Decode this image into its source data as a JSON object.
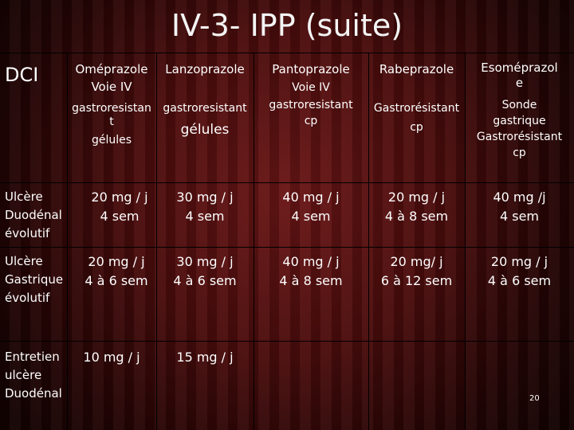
{
  "title": "IV-3- IPP (suite)",
  "dci_label": "DCI",
  "columns": [
    {
      "name": "Oméprazole",
      "line2": "Voie IV",
      "sub": [
        "gastroresistan",
        "t",
        "gélules"
      ]
    },
    {
      "name": "Lanzoprazole",
      "line2": "",
      "sub": [
        "gastroresistant",
        "gélules"
      ]
    },
    {
      "name": "Pantoprazole",
      "line2": "Voie IV",
      "sub": [
        "gastroresistant",
        "cp"
      ]
    },
    {
      "name": "Rabeprazole",
      "line2": "",
      "sub": [
        "Gastrorésistant",
        "cp"
      ]
    },
    {
      "name": "Esoméprazol",
      "line2": "e",
      "sub": [
        "Sonde",
        "gastrique",
        "Gastrorésistant",
        "cp"
      ]
    }
  ],
  "rows": [
    {
      "label": [
        "Ulcère",
        "Duodénal",
        "évolutif"
      ],
      "cells": [
        [
          "20 mg / j",
          "4 sem"
        ],
        [
          "30 mg / j",
          "4 sem"
        ],
        [
          "40 mg / j",
          "4 sem"
        ],
        [
          "20 mg / j",
          "4 à 8 sem"
        ],
        [
          "40 mg /j",
          "4 sem"
        ]
      ]
    },
    {
      "label": [
        "Ulcère",
        "Gastrique",
        "évolutif"
      ],
      "cells": [
        [
          "20 mg / j",
          "4 à 6 sem"
        ],
        [
          "30 mg / j",
          "4 à 6 sem"
        ],
        [
          "40 mg / j",
          "4 à 8 sem"
        ],
        [
          "20 mg/ j",
          "6 à 12 sem"
        ],
        [
          "20 mg / j",
          "4 à 6 sem"
        ]
      ]
    },
    {
      "label": [
        "Entretien",
        "ulcère",
        "Duodénal"
      ],
      "cells": [
        [
          "10 mg / j"
        ],
        [
          "15 mg / j"
        ],
        [],
        [],
        []
      ]
    }
  ],
  "page_number": "20"
}
